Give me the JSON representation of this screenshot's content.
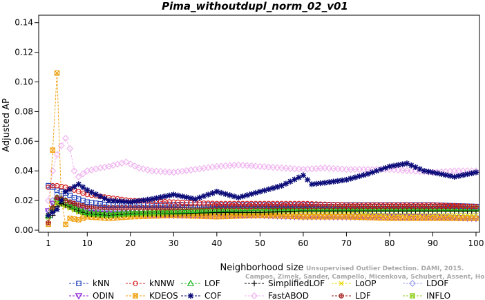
{
  "chart_data": {
    "type": "line",
    "title": "Pima_withoutdupl_norm_02_v01",
    "xlabel": "Neighborhood size",
    "ylabel": "Adjusted AP",
    "xlim": [
      1,
      100
    ],
    "ylim": [
      0,
      0.145
    ],
    "xticks": [
      1,
      10,
      20,
      30,
      40,
      50,
      60,
      70,
      80,
      90,
      100
    ],
    "yticks": [
      "0.00",
      "0.02",
      "0.04",
      "0.06",
      "0.08",
      "0.10",
      "0.12",
      "0.14"
    ],
    "grid": false,
    "legend_position": "bottom",
    "credit": [
      "Unsupervised Outlier Detection. DAMI, 2015.",
      "Campos, Zimek, Sander, Campello, Micenkova, Schubert, Assent, Houle"
    ],
    "series": [
      {
        "name": "kNN",
        "color": "#1f3fb8",
        "marker": "square",
        "x": [
          1,
          2,
          3,
          5,
          7,
          10,
          15,
          20,
          30,
          40,
          50,
          60,
          70,
          80,
          90,
          100
        ],
        "y": [
          0.03,
          0.029,
          0.027,
          0.025,
          0.022,
          0.019,
          0.017,
          0.017,
          0.017,
          0.017,
          0.017,
          0.017,
          0.017,
          0.017,
          0.017,
          0.016
        ]
      },
      {
        "name": "kNNW",
        "color": "#d42020",
        "marker": "circle",
        "x": [
          1,
          2,
          3,
          5,
          8,
          10,
          15,
          20,
          30,
          40,
          50,
          60,
          70,
          80,
          90,
          100
        ],
        "y": [
          0.029,
          0.03,
          0.03,
          0.029,
          0.026,
          0.024,
          0.022,
          0.02,
          0.019,
          0.018,
          0.018,
          0.018,
          0.017,
          0.017,
          0.017,
          0.016
        ]
      },
      {
        "name": "LOF",
        "color": "#22b822",
        "marker": "triangle-up",
        "x": [
          1,
          2,
          3,
          4,
          5,
          8,
          10,
          15,
          20,
          30,
          40,
          50,
          60,
          70,
          80,
          90,
          100
        ],
        "y": [
          0.01,
          0.015,
          0.022,
          0.021,
          0.02,
          0.014,
          0.012,
          0.011,
          0.012,
          0.013,
          0.014,
          0.015,
          0.015,
          0.015,
          0.015,
          0.015,
          0.015
        ]
      },
      {
        "name": "SimplifiedLOF",
        "color": "#000000",
        "marker": "plus",
        "x": [
          1,
          2,
          3,
          4,
          5,
          8,
          10,
          15,
          20,
          30,
          40,
          50,
          60,
          70,
          80,
          90,
          100
        ],
        "y": [
          0.01,
          0.01,
          0.016,
          0.018,
          0.017,
          0.013,
          0.011,
          0.01,
          0.011,
          0.011,
          0.012,
          0.012,
          0.013,
          0.013,
          0.013,
          0.013,
          0.013
        ]
      },
      {
        "name": "LoOP",
        "color": "#e8d800",
        "marker": "x",
        "x": [
          1,
          2,
          3,
          5,
          8,
          10,
          15,
          20,
          30,
          40,
          50,
          60,
          70,
          80,
          90,
          100
        ],
        "y": [
          0.01,
          0.013,
          0.018,
          0.016,
          0.012,
          0.01,
          0.01,
          0.01,
          0.011,
          0.011,
          0.011,
          0.011,
          0.011,
          0.01,
          0.01,
          0.01
        ]
      },
      {
        "name": "LDOF",
        "color": "#9fa4e8",
        "marker": "diamond",
        "x": [
          1,
          2,
          3,
          5,
          8,
          10,
          15,
          20,
          30,
          40,
          50,
          60,
          70,
          80,
          90,
          100
        ],
        "y": [
          0.013,
          0.02,
          0.024,
          0.02,
          0.016,
          0.015,
          0.013,
          0.012,
          0.011,
          0.011,
          0.01,
          0.01,
          0.01,
          0.01,
          0.009,
          0.009
        ]
      },
      {
        "name": "ODIN",
        "color": "#9020d8",
        "marker": "triangle-down",
        "x": [
          1,
          2,
          3,
          5,
          8,
          10,
          15,
          20,
          30,
          40,
          50,
          60,
          70,
          80,
          90,
          100
        ],
        "y": [
          0.013,
          0.018,
          0.02,
          0.017,
          0.014,
          0.012,
          0.011,
          0.011,
          0.01,
          0.01,
          0.01,
          0.009,
          0.009,
          0.009,
          0.009,
          0.008
        ]
      },
      {
        "name": "KDEOS",
        "color": "#f0a010",
        "marker": "square-x",
        "x": [
          1,
          2,
          3,
          4,
          5,
          6,
          8,
          10,
          15,
          20,
          30,
          40,
          50,
          60,
          70,
          80,
          90,
          100
        ],
        "y": [
          0.004,
          0.054,
          0.106,
          0.02,
          0.004,
          0.008,
          0.007,
          0.009,
          0.008,
          0.009,
          0.01,
          0.009,
          0.01,
          0.009,
          0.009,
          0.008,
          0.008,
          0.008
        ]
      },
      {
        "name": "COF",
        "color": "#0a0a78",
        "marker": "star",
        "x": [
          1,
          3,
          5,
          8,
          10,
          15,
          20,
          25,
          30,
          35,
          40,
          45,
          50,
          55,
          60,
          62,
          65,
          70,
          75,
          80,
          84,
          88,
          90,
          95,
          100
        ],
        "y": [
          0.01,
          0.014,
          0.026,
          0.031,
          0.027,
          0.02,
          0.019,
          0.021,
          0.024,
          0.021,
          0.026,
          0.022,
          0.026,
          0.03,
          0.037,
          0.031,
          0.032,
          0.034,
          0.038,
          0.043,
          0.045,
          0.04,
          0.039,
          0.036,
          0.039
        ]
      },
      {
        "name": "FastABOD",
        "color": "#f0b4f0",
        "marker": "diamond",
        "x": [
          1,
          2,
          3,
          4,
          5,
          6,
          7,
          8,
          10,
          13,
          15,
          19,
          22,
          25,
          30,
          35,
          40,
          45,
          50,
          55,
          60,
          65,
          70,
          75,
          80,
          85,
          90,
          95,
          100
        ],
        "y": [
          0.02,
          0.04,
          0.051,
          0.057,
          0.062,
          0.055,
          0.04,
          0.036,
          0.04,
          0.042,
          0.043,
          0.046,
          0.042,
          0.04,
          0.039,
          0.041,
          0.043,
          0.044,
          0.043,
          0.042,
          0.041,
          0.042,
          0.041,
          0.041,
          0.041,
          0.04,
          0.039,
          0.04,
          0.04
        ]
      },
      {
        "name": "LDF",
        "color": "#a01818",
        "marker": "circle-plus",
        "x": [
          1,
          2,
          3,
          5,
          8,
          10,
          15,
          20,
          30,
          40,
          50,
          60,
          70,
          80,
          90,
          100
        ],
        "y": [
          0.005,
          0.015,
          0.022,
          0.02,
          0.017,
          0.016,
          0.015,
          0.015,
          0.015,
          0.016,
          0.016,
          0.016,
          0.016,
          0.016,
          0.016,
          0.016
        ]
      },
      {
        "name": "INFLO",
        "color": "#90d020",
        "marker": "square-x",
        "x": [
          1,
          2,
          3,
          5,
          8,
          10,
          15,
          20,
          30,
          40,
          50,
          60,
          70,
          80,
          90,
          100
        ],
        "y": [
          0.009,
          0.014,
          0.019,
          0.017,
          0.013,
          0.011,
          0.01,
          0.011,
          0.012,
          0.013,
          0.013,
          0.014,
          0.014,
          0.014,
          0.014,
          0.014
        ]
      }
    ],
    "legend_order": [
      "kNN",
      "kNNW",
      "LOF",
      "SimplifiedLOF",
      "LoOP",
      "LDOF",
      "ODIN",
      "KDEOS",
      "COF",
      "FastABOD",
      "LDF",
      "INFLO"
    ]
  }
}
